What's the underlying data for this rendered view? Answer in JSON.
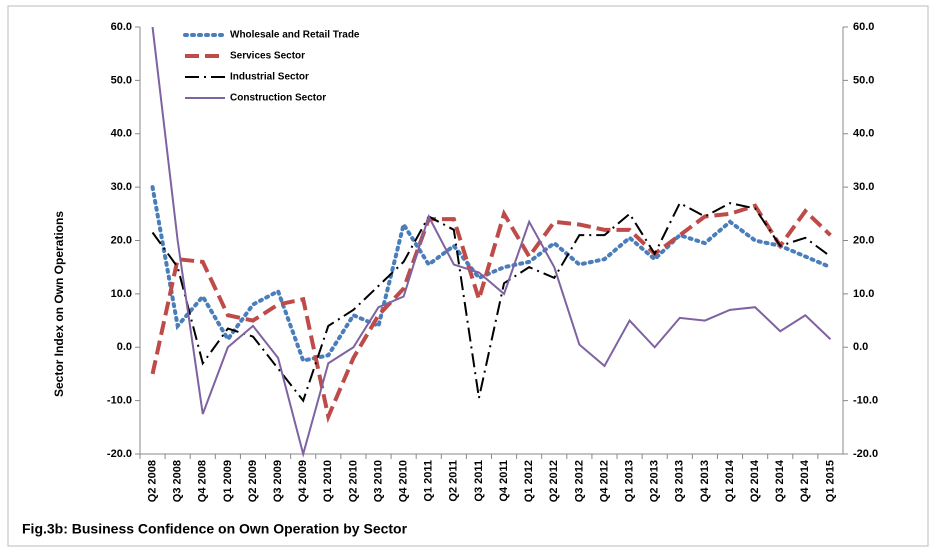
{
  "chart_data": {
    "type": "line",
    "caption": "Fig.3b: Business Confidence on Own Operation by Sector",
    "y_label": "Sector  Index on Own Operations",
    "categories": [
      "Q2 2008",
      "Q3 2008",
      "Q4 2008",
      "Q1 2009",
      "Q2 2009",
      "Q3 2009",
      "Q4 2009",
      "Q1 2010",
      "Q2 2010",
      "Q3 2010",
      "Q4 2010",
      "Q1 2011",
      "Q2 2011",
      "Q3 2011",
      "Q4 2011",
      "Q1 2012",
      "Q2 2012",
      "Q3 2012",
      "Q4 2012",
      "Q1 2013",
      "Q2 2013",
      "Q3 2013",
      "Q4 2013",
      "Q1 2014",
      "Q2 2014",
      "Q3 2014",
      "Q4 2014",
      "Q1 2015"
    ],
    "series": [
      {
        "name": "Wholesale and Retail Trade",
        "color": "#4a7ebb",
        "style": "dotted",
        "values": [
          30,
          4,
          9.5,
          1.5,
          8,
          10.5,
          -2.5,
          -1.5,
          6,
          4,
          23,
          15.5,
          19,
          13,
          15,
          16,
          19.5,
          15.5,
          16.5,
          20.5,
          16.5,
          21,
          19.5,
          23.5,
          20,
          19,
          17,
          15
        ]
      },
      {
        "name": "Services Sector",
        "color": "#be4b48",
        "style": "dashed",
        "values": [
          -5,
          16.5,
          16,
          6,
          5,
          8,
          9,
          -13,
          -2,
          6,
          11,
          24,
          24,
          9,
          25,
          17,
          23.5,
          23,
          22,
          22,
          17.5,
          21,
          24.5,
          25,
          26.5,
          19,
          25.5,
          21
        ]
      },
      {
        "name": "Industrial Sector",
        "color": "#000000",
        "style": "dashdot",
        "values": [
          21.5,
          15,
          -3,
          3.5,
          2,
          -4,
          -10,
          4,
          7,
          11.5,
          16,
          24.5,
          22,
          -9.5,
          12,
          15,
          13,
          21,
          21,
          25,
          17.5,
          27,
          24.5,
          27,
          26,
          19,
          20.5,
          17
        ]
      },
      {
        "name": "Construction Sector",
        "color": "#7e62a1",
        "style": "solid",
        "values": [
          60,
          20,
          -12.5,
          0,
          4,
          -2,
          -20,
          -3,
          0,
          7.5,
          9.5,
          24.5,
          15.5,
          14,
          10,
          23.5,
          15,
          0.5,
          -3.5,
          5,
          0,
          5.5,
          5,
          7,
          7.5,
          3,
          6,
          1.5
        ]
      }
    ],
    "ylim": [
      -20,
      60
    ],
    "yticks": [
      {
        "value": -20,
        "label": "-20.0"
      },
      {
        "value": -10,
        "label": "-10.0"
      },
      {
        "value": 0,
        "label": "0.0"
      },
      {
        "value": 10,
        "label": "10.0"
      },
      {
        "value": 20,
        "label": "20.0"
      },
      {
        "value": 30,
        "label": "30.0"
      },
      {
        "value": 40,
        "label": "40.0"
      },
      {
        "value": 50,
        "label": "50.0"
      },
      {
        "value": 60,
        "label": "60.0"
      }
    ],
    "y2lim": [
      -20,
      60
    ],
    "y2ticks": [
      {
        "value": -20,
        "label": "-20.0"
      },
      {
        "value": -10,
        "label": "-10.0"
      },
      {
        "value": 0,
        "label": "0.0"
      },
      {
        "value": 10,
        "label": "10.0"
      },
      {
        "value": 20,
        "label": "20.0"
      },
      {
        "value": 30,
        "label": "30.0"
      },
      {
        "value": 40,
        "label": "40.0"
      },
      {
        "value": 50,
        "label": "50.0"
      },
      {
        "value": 60,
        "label": "60.0"
      }
    ],
    "legend": "upper left"
  }
}
